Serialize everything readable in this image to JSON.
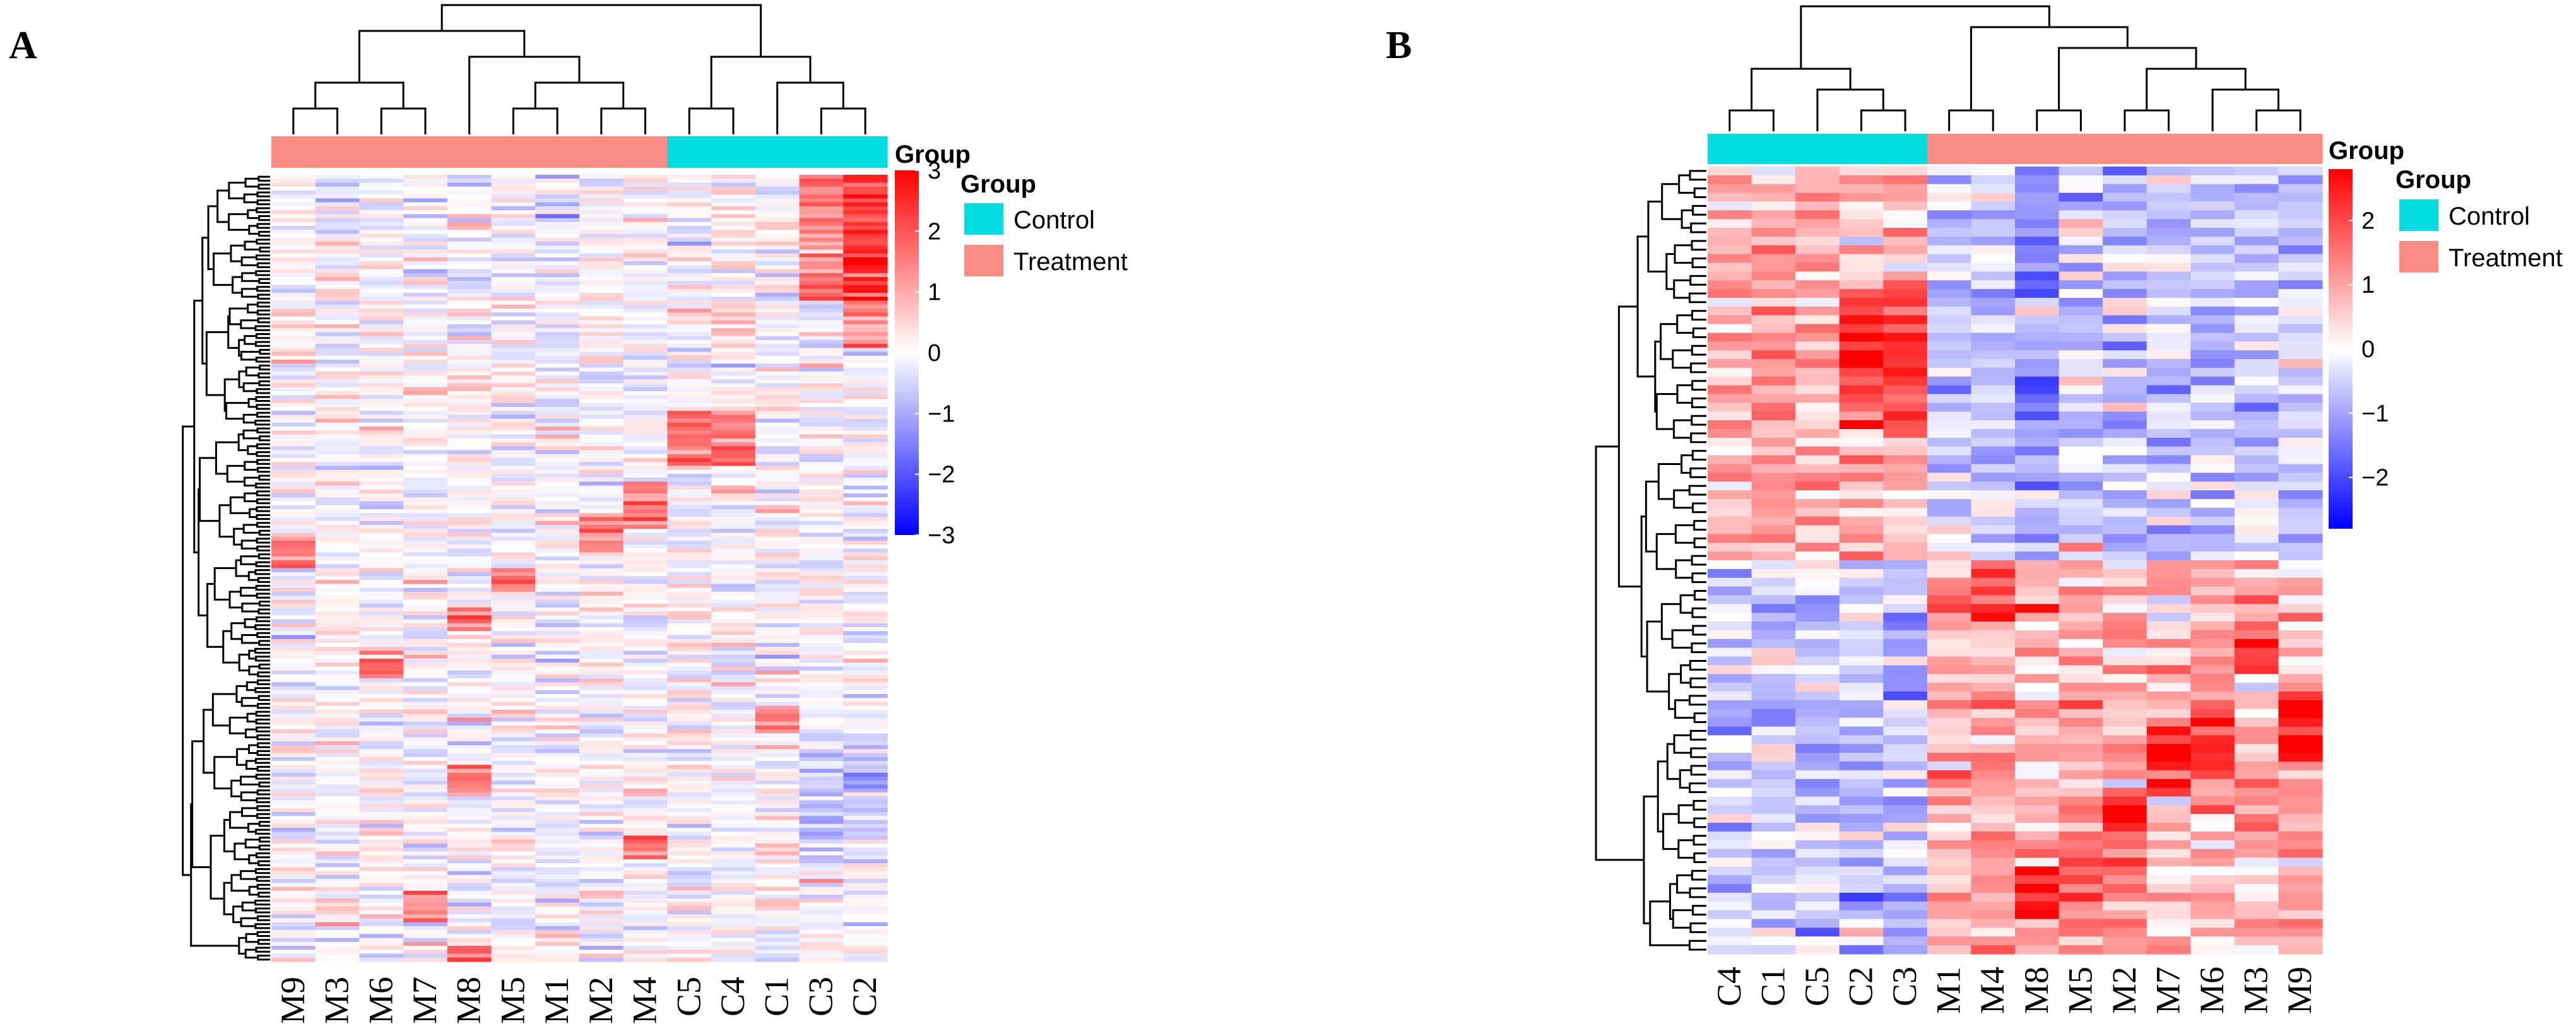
{
  "figure": {
    "panel_labels": [
      "A",
      "B"
    ]
  },
  "colors": {
    "control": "#00DCE0",
    "treatment": "#FA8C84",
    "low": "#0000FF",
    "mid": "#FFFFFF",
    "high": "#FF0000"
  },
  "chart_data": [
    {
      "type": "heatmap",
      "panel": "A",
      "columns": [
        "M9",
        "M3",
        "M6",
        "M7",
        "M8",
        "M5",
        "M1",
        "M2",
        "M4",
        "C5",
        "C4",
        "C1",
        "C3",
        "C2"
      ],
      "column_groups": [
        "Treatment",
        "Treatment",
        "Treatment",
        "Treatment",
        "Treatment",
        "Treatment",
        "Treatment",
        "Treatment",
        "Treatment",
        "Control",
        "Control",
        "Control",
        "Control",
        "Control"
      ],
      "annotation_title": "Group",
      "legend": {
        "title": "Group",
        "entries": [
          "Control",
          "Treatment"
        ]
      },
      "colorbar": {
        "ticks": [
          "3",
          "2",
          "1",
          "0",
          "−1",
          "−2",
          "−3"
        ],
        "range": [
          -3,
          3
        ]
      },
      "n_rows": 200,
      "values_approx": "row-scaled z-scores, mostly near 0; C3 and C2 strongly positive in the top rows; scattered red cells in M4, M5, M8, M9"
    },
    {
      "type": "heatmap",
      "panel": "B",
      "columns": [
        "C4",
        "C1",
        "C5",
        "C2",
        "C3",
        "M1",
        "M4",
        "M8",
        "M5",
        "M2",
        "M7",
        "M6",
        "M3",
        "M9"
      ],
      "column_groups": [
        "Control",
        "Control",
        "Control",
        "Control",
        "Control",
        "Treatment",
        "Treatment",
        "Treatment",
        "Treatment",
        "Treatment",
        "Treatment",
        "Treatment",
        "Treatment",
        "Treatment"
      ],
      "annotation_title": "Group",
      "legend": {
        "title": "Group",
        "entries": [
          "Control",
          "Treatment"
        ]
      },
      "colorbar": {
        "ticks": [
          "2",
          "1",
          "0",
          "−1",
          "−2"
        ],
        "range": [
          -2.8,
          2.8
        ]
      },
      "n_rows": 90,
      "values_approx": "upper ~45 rows high (red) in Control C1-C5 and low (blue) in Treatment; lower ~45 rows low in Control and high in Treatment"
    }
  ]
}
